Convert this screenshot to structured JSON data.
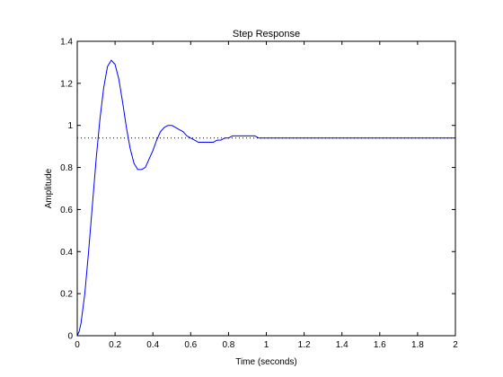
{
  "chart_data": {
    "type": "line",
    "title": "Step Response",
    "xlabel": "Time (seconds)",
    "ylabel": "Amplitude",
    "xlim": [
      0,
      2
    ],
    "ylim": [
      0,
      1.4
    ],
    "xticks": [
      "0",
      "0.2",
      "0.4",
      "0.6",
      "0.8",
      "1",
      "1.2",
      "1.4",
      "1.6",
      "1.8",
      "2"
    ],
    "yticks": [
      "0",
      "0.2",
      "0.4",
      "0.6",
      "0.8",
      "1",
      "1.2",
      "1.4"
    ],
    "grid": false,
    "series": [
      {
        "color": "#0000ff",
        "style": "solid",
        "x": [
          0,
          0.01,
          0.02,
          0.04,
          0.06,
          0.08,
          0.1,
          0.12,
          0.14,
          0.16,
          0.18,
          0.2,
          0.22,
          0.24,
          0.26,
          0.28,
          0.3,
          0.32,
          0.34,
          0.36,
          0.38,
          0.4,
          0.42,
          0.44,
          0.46,
          0.48,
          0.5,
          0.52,
          0.54,
          0.56,
          0.58,
          0.6,
          0.62,
          0.64,
          0.66,
          0.68,
          0.7,
          0.72,
          0.74,
          0.76,
          0.78,
          0.8,
          0.82,
          0.84,
          0.86,
          0.88,
          0.9,
          0.92,
          0.94,
          0.96,
          0.98,
          1.0,
          1.02,
          1.04,
          1.06,
          1.08,
          1.1,
          1.12,
          1.14,
          1.2,
          1.4,
          1.6,
          1.8,
          2.0
        ],
        "y": [
          0,
          0.02,
          0.06,
          0.2,
          0.4,
          0.62,
          0.84,
          1.03,
          1.18,
          1.28,
          1.31,
          1.29,
          1.22,
          1.11,
          0.99,
          0.89,
          0.82,
          0.79,
          0.79,
          0.8,
          0.84,
          0.88,
          0.93,
          0.97,
          0.99,
          1.0,
          1.0,
          0.99,
          0.98,
          0.97,
          0.95,
          0.94,
          0.93,
          0.92,
          0.92,
          0.92,
          0.92,
          0.92,
          0.93,
          0.93,
          0.94,
          0.94,
          0.95,
          0.95,
          0.95,
          0.95,
          0.95,
          0.95,
          0.95,
          0.94,
          0.94,
          0.94,
          0.94,
          0.94,
          0.94,
          0.94,
          0.94,
          0.94,
          0.94,
          0.94,
          0.94,
          0.94,
          0.94,
          0.94
        ]
      },
      {
        "color": "#000000",
        "style": "dotted",
        "x": [
          0,
          2
        ],
        "y": [
          0.94,
          0.94
        ]
      }
    ]
  }
}
